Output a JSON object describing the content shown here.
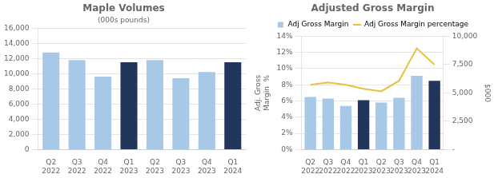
{
  "chart_data": [
    {
      "type": "bar",
      "title": "Maple Volumes",
      "subtitle": "(000s pounds)",
      "categories": [
        "Q2\n2022",
        "Q3\n2022",
        "Q4\n2022",
        "Q1\n2023",
        "Q2\n2023",
        "Q3\n2023",
        "Q4\n2023",
        "Q1\n2024"
      ],
      "values": [
        12800,
        11800,
        9600,
        11500,
        11800,
        9400,
        10200,
        11500
      ],
      "colors": [
        "#a8c8e8",
        "#a8c8e8",
        "#a8c8e8",
        "#22355a",
        "#a8c8e8",
        "#a8c8e8",
        "#a8c8e8",
        "#22355a"
      ],
      "ylim": [
        0,
        16000
      ],
      "yticks": [
        0,
        {
          "value": 2000,
          "label": "2,000"
        },
        {
          "value": 4000,
          "label": "4,000"
        },
        {
          "value": 6000,
          "label": "6,000"
        },
        {
          "value": 8000,
          "label": "8,000"
        },
        {
          "value": 10000,
          "label": "10,000"
        },
        {
          "value": 12000,
          "label": "12,000"
        },
        {
          "value": 14000,
          "label": "14,000"
        },
        {
          "value": 16000,
          "label": "16,000"
        }
      ],
      "grid": true
    },
    {
      "type": "bar",
      "title": "Adjusted Gross Margin",
      "categories": [
        "Q2\n2022",
        "Q3\n2022",
        "Q4\n2022",
        "Q1\n2023",
        "Q2\n2023",
        "Q3\n2023",
        "Q4\n2023",
        "Q1\n2024"
      ],
      "series": [
        {
          "name": "Adj Gross Margin",
          "type": "bar",
          "color": "#a8c8e8",
          "colors": [
            "#a8c8e8",
            "#a8c8e8",
            "#a8c8e8",
            "#22355a",
            "#a8c8e8",
            "#a8c8e8",
            "#a8c8e8",
            "#22355a"
          ],
          "values": [
            6.5,
            6.3,
            5.4,
            6.1,
            5.8,
            6.4,
            9.1,
            8.5
          ]
        },
        {
          "name": "Adj Gross Margin percentage",
          "type": "line",
          "color": "#e8c040",
          "values": [
            8.0,
            8.3,
            8.0,
            7.5,
            7.2,
            8.5,
            12.5,
            10.5
          ]
        }
      ],
      "ylabel": "Adj. Gross\nMargin  %",
      "y2label": "$000",
      "ylim": [
        0,
        14
      ],
      "yticks": [
        {
          "value": 0,
          "label": "0%"
        },
        {
          "value": 2,
          "label": "2%"
        },
        {
          "value": 4,
          "label": "4%"
        },
        {
          "value": 6,
          "label": "6%"
        },
        {
          "value": 8,
          "label": "8%"
        },
        {
          "value": 10,
          "label": "10%"
        },
        {
          "value": 12,
          "label": "12%"
        },
        {
          "value": 14,
          "label": "14%"
        }
      ],
      "y2lim": [
        0,
        10000
      ],
      "y2ticks": [
        {
          "value": 0,
          "label": "-"
        },
        {
          "value": 2500,
          "label": "2,500"
        },
        {
          "value": 5000,
          "label": "5,000"
        },
        {
          "value": 7500,
          "label": "7,500"
        },
        {
          "value": 10000,
          "label": "10,000"
        }
      ],
      "grid": true,
      "legend": "top"
    }
  ]
}
